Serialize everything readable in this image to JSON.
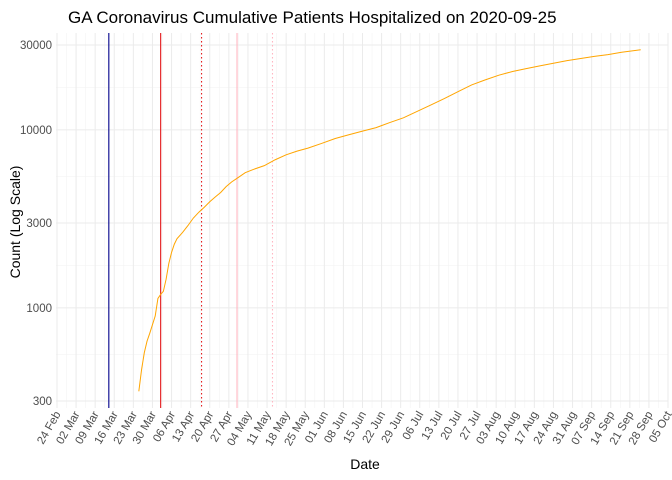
{
  "chart_data": {
    "type": "line",
    "title": "GA Coronavirus Cumulative Patients Hospitalized on 2020-09-25",
    "xlabel": "Date",
    "ylabel": "Count (Log Scale)",
    "y_scale": "log",
    "ylim": [
      300,
      30000
    ],
    "y_ticks": [
      300,
      1000,
      3000,
      10000,
      30000
    ],
    "y_tick_labels": [
      "300",
      "1000",
      "3000",
      "10000",
      "30000"
    ],
    "xlim": [
      "2020-02-24",
      "2020-10-05"
    ],
    "x_ticks": [
      "2020-02-24",
      "2020-03-02",
      "2020-03-09",
      "2020-03-16",
      "2020-03-23",
      "2020-03-30",
      "2020-04-06",
      "2020-04-13",
      "2020-04-20",
      "2020-04-27",
      "2020-05-04",
      "2020-05-11",
      "2020-05-18",
      "2020-05-25",
      "2020-06-01",
      "2020-06-08",
      "2020-06-15",
      "2020-06-22",
      "2020-06-29",
      "2020-07-06",
      "2020-07-13",
      "2020-07-20",
      "2020-07-27",
      "2020-08-03",
      "2020-08-10",
      "2020-08-17",
      "2020-08-24",
      "2020-08-31",
      "2020-09-07",
      "2020-09-14",
      "2020-09-21",
      "2020-09-28",
      "2020-10-05"
    ],
    "x_tick_labels": [
      "24 Feb",
      "02 Mar",
      "09 Mar",
      "16 Mar",
      "23 Mar",
      "30 Mar",
      "06 Apr",
      "13 Apr",
      "20 Apr",
      "27 Apr",
      "04 May",
      "11 May",
      "18 May",
      "25 May",
      "01 Jun",
      "08 Jun",
      "15 Jun",
      "22 Jun",
      "29 Jun",
      "06 Jul",
      "13 Jul",
      "20 Jul",
      "27 Jul",
      "03 Aug",
      "10 Aug",
      "17 Aug",
      "24 Aug",
      "31 Aug",
      "07 Sep",
      "14 Sep",
      "21 Sep",
      "28 Sep",
      "05 Oct"
    ],
    "grid": true,
    "vlines": [
      {
        "date": "2020-03-14",
        "color": "#00008b",
        "style": "solid"
      },
      {
        "date": "2020-04-02",
        "color": "#e41a1c",
        "style": "solid"
      },
      {
        "date": "2020-04-17",
        "color": "#e41a1c",
        "style": "dotted"
      },
      {
        "date": "2020-04-30",
        "color": "#ffb6c1",
        "style": "solid"
      },
      {
        "date": "2020-05-13",
        "color": "#ffb6c1",
        "style": "dotted"
      }
    ],
    "series": [
      {
        "color": "#ffa500",
        "x": [
          "2020-03-25",
          "2020-03-26",
          "2020-03-27",
          "2020-03-28",
          "2020-03-29",
          "2020-03-31",
          "2020-04-01",
          "2020-04-02",
          "2020-04-03",
          "2020-04-04",
          "2020-04-05",
          "2020-04-06",
          "2020-04-07",
          "2020-04-08",
          "2020-04-10",
          "2020-04-12",
          "2020-04-14",
          "2020-04-16",
          "2020-04-18",
          "2020-04-20",
          "2020-04-22",
          "2020-04-24",
          "2020-04-26",
          "2020-04-28",
          "2020-04-30",
          "2020-05-03",
          "2020-05-06",
          "2020-05-10",
          "2020-05-14",
          "2020-05-18",
          "2020-05-22",
          "2020-05-26",
          "2020-05-31",
          "2020-06-05",
          "2020-06-10",
          "2020-06-15",
          "2020-06-20",
          "2020-06-25",
          "2020-06-30",
          "2020-07-05",
          "2020-07-10",
          "2020-07-15",
          "2020-07-20",
          "2020-07-25",
          "2020-07-30",
          "2020-08-04",
          "2020-08-09",
          "2020-08-14",
          "2020-08-19",
          "2020-08-24",
          "2020-08-29",
          "2020-09-03",
          "2020-09-08",
          "2020-09-13",
          "2020-09-18",
          "2020-09-25"
        ],
        "y": [
          340,
          450,
          560,
          650,
          720,
          900,
          1130,
          1190,
          1240,
          1450,
          1780,
          2050,
          2280,
          2450,
          2650,
          2900,
          3200,
          3450,
          3680,
          3950,
          4200,
          4450,
          4800,
          5100,
          5350,
          5750,
          6000,
          6300,
          6800,
          7250,
          7600,
          7900,
          8400,
          8950,
          9400,
          9850,
          10300,
          11000,
          11700,
          12700,
          13800,
          15000,
          16400,
          17900,
          19100,
          20300,
          21300,
          22100,
          22900,
          23700,
          24500,
          25200,
          25900,
          26500,
          27300,
          28200
        ]
      }
    ]
  }
}
